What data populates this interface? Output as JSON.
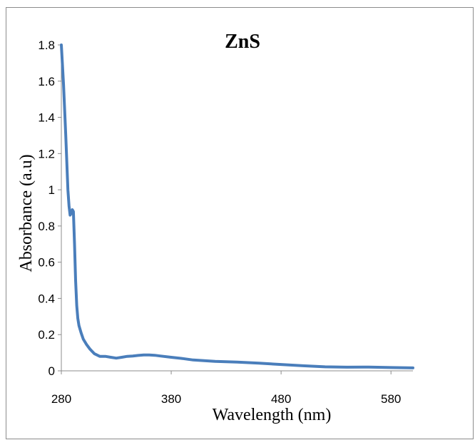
{
  "chart_data": {
    "type": "line",
    "title": "ZnS",
    "xlabel": "Wavelength (nm)",
    "ylabel": "Absorbance (a.u)",
    "xlim": [
      280,
      600
    ],
    "ylim": [
      0,
      1.8
    ],
    "x_ticks": [
      280,
      380,
      480,
      580
    ],
    "x_tick_labels": [
      "280",
      "380",
      "480",
      "580"
    ],
    "y_ticks": [
      0,
      0.2,
      0.4,
      0.6,
      0.8,
      1,
      1.2,
      1.4,
      1.6,
      1.8
    ],
    "y_tick_labels": [
      "0",
      "0.2",
      "0.4",
      "0.6",
      "0.8",
      "1",
      "1.2",
      "1.4",
      "1.6",
      "1.8"
    ],
    "grid": false,
    "legend": "none",
    "series": [
      {
        "color": "#4a7ebb",
        "x": [
          280,
          282,
          284,
          286,
          287,
          288,
          289,
          290,
          291,
          292,
          293,
          294,
          295,
          296,
          298,
          300,
          303,
          306,
          310,
          315,
          320,
          325,
          330,
          335,
          340,
          345,
          350,
          355,
          360,
          365,
          370,
          380,
          390,
          400,
          420,
          440,
          460,
          480,
          500,
          520,
          540,
          560,
          580,
          600
        ],
        "y": [
          1.8,
          1.58,
          1.3,
          1.0,
          0.91,
          0.86,
          0.87,
          0.89,
          0.88,
          0.7,
          0.5,
          0.36,
          0.29,
          0.25,
          0.21,
          0.175,
          0.145,
          0.12,
          0.095,
          0.08,
          0.08,
          0.075,
          0.07,
          0.075,
          0.08,
          0.082,
          0.085,
          0.088,
          0.088,
          0.086,
          0.082,
          0.075,
          0.068,
          0.06,
          0.052,
          0.048,
          0.042,
          0.035,
          0.028,
          0.022,
          0.02,
          0.021,
          0.018,
          0.016
        ]
      }
    ]
  }
}
